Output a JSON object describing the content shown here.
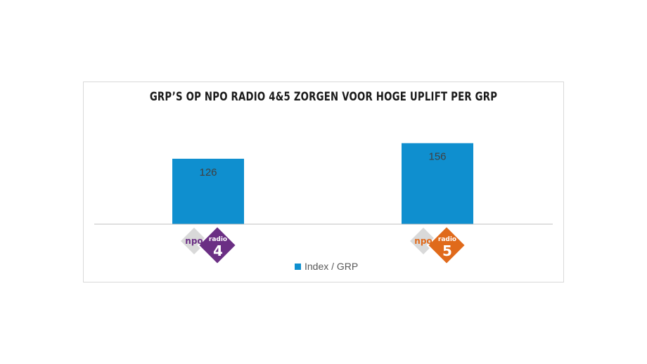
{
  "chart_data": {
    "type": "bar",
    "title": "GRP’S OP NPO RADIO 4&5 ZORGEN VOOR HOGE UPLIFT PER GRP",
    "categories": [
      "radio 4",
      "radio 5"
    ],
    "series": [
      {
        "name": "Index / GRP",
        "values": [
          126,
          156
        ],
        "color": "#0f8fcf"
      }
    ],
    "ylim": [
      0,
      180
    ],
    "grid": false,
    "legend": "bottom-center",
    "data_labels": true
  },
  "logos": [
    {
      "brand": "npo",
      "name": "radio",
      "number": "4",
      "color": "#6b2f84"
    },
    {
      "brand": "npo",
      "name": "radio",
      "number": "5",
      "color": "#e06a1b"
    }
  ],
  "colors": {
    "axis": "#bfbfbf",
    "label": "#404040",
    "logo_back": "#d9d9d9"
  }
}
